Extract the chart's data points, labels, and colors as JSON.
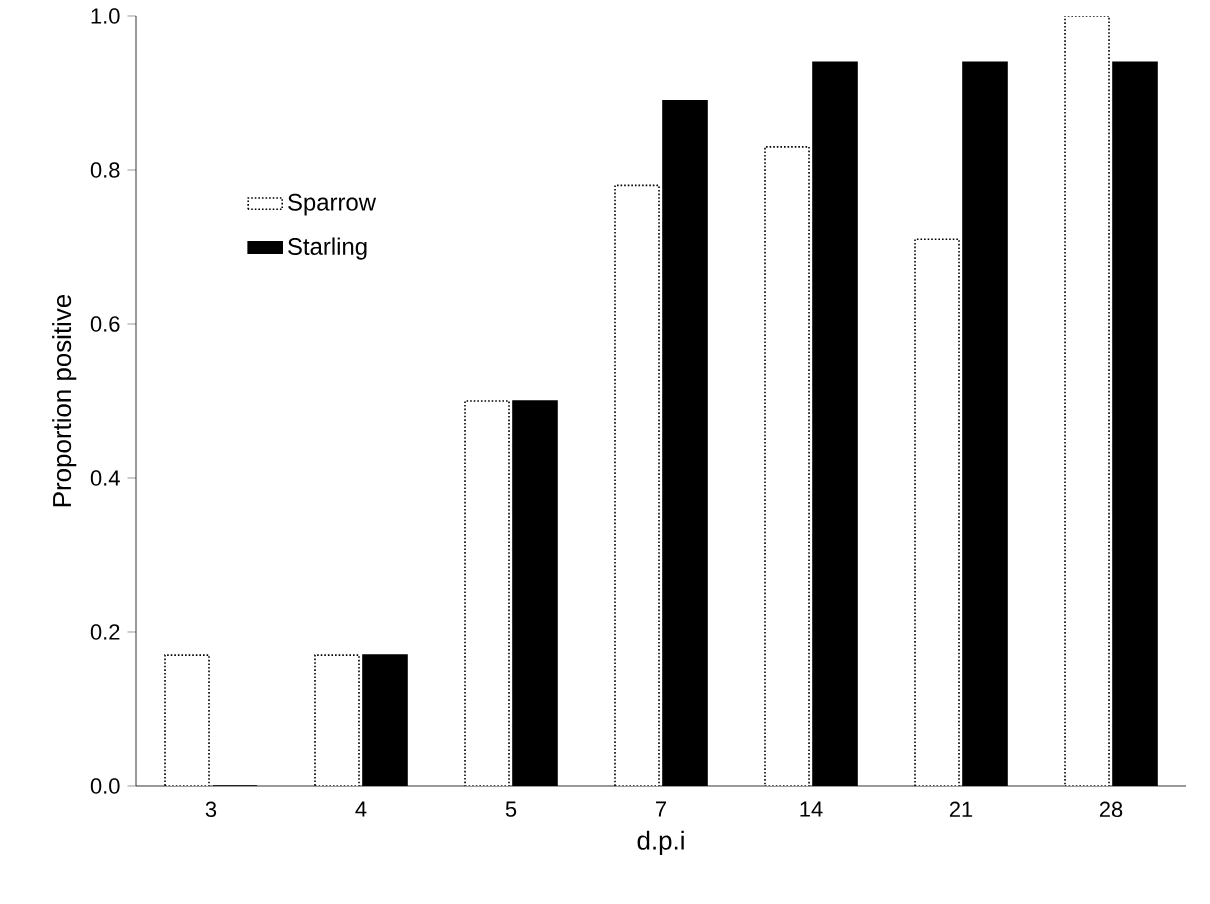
{
  "chart_data": {
    "type": "bar",
    "xlabel": "d.p.i",
    "ylabel": "Proportion positive",
    "categories": [
      "3",
      "4",
      "5",
      "7",
      "14",
      "21",
      "28"
    ],
    "series": [
      {
        "name": "Sparrow",
        "color": "#ffffff",
        "line_style": "dotted",
        "values": [
          0.17,
          0.17,
          0.5,
          0.78,
          0.83,
          0.71,
          1.0
        ]
      },
      {
        "name": "Starling",
        "color": "#000000",
        "values": [
          0,
          0.17,
          0.5,
          0.89,
          0.94,
          0.94,
          0.94
        ]
      }
    ],
    "ylim": [
      0,
      1
    ],
    "yticks": [
      {
        "value": 0,
        "label": "0.0"
      },
      {
        "value": 0.2,
        "label": "0.2"
      },
      {
        "value": 0.4,
        "label": "0.4"
      },
      {
        "value": 0.6,
        "label": "0.6"
      },
      {
        "value": 0.8,
        "label": "0.8"
      },
      {
        "value": 1,
        "label": "1.0"
      }
    ],
    "legend": "top left",
    "grid": false
  }
}
